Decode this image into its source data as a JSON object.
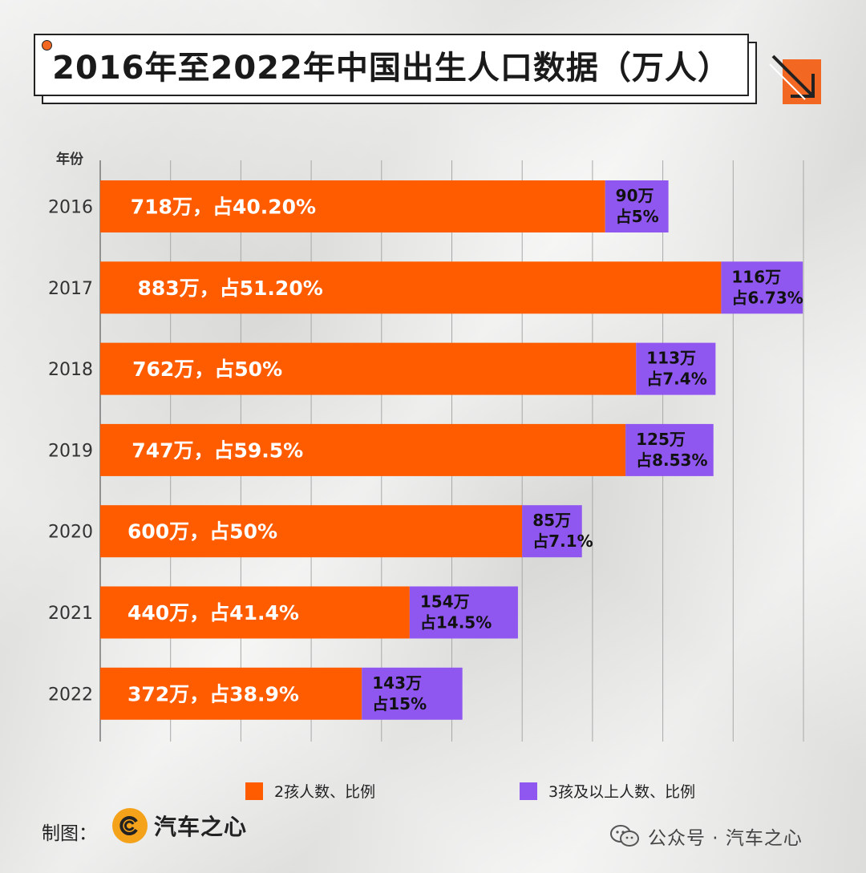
{
  "title": "2016年至2022年中国出生人口数据（万人）",
  "year_header": "年份",
  "maker_label": "制图：",
  "logo_text": "汽车之心",
  "wechat_text": "公众号 · 汽车之心",
  "colors": {
    "two_child": "#ff5c00",
    "three_plus": "#8f57f0",
    "accent": "#f26722"
  },
  "chart_data": {
    "type": "bar",
    "orientation": "horizontal",
    "stacked": true,
    "categories": [
      "2016",
      "2017",
      "2018",
      "2019",
      "2020",
      "2021",
      "2022"
    ],
    "series": [
      {
        "name": "2孩人数、比例",
        "values": [
          718,
          883,
          762,
          747,
          600,
          440,
          372
        ],
        "labels": [
          "718万，占40.20%",
          "883万，占51.20%",
          "762万，占50%",
          "747万，占59.5%",
          "600万，占50%",
          "440万，占41.4%",
          "372万，占38.9%"
        ]
      },
      {
        "name": "3孩及以上人数、比例",
        "values": [
          90,
          116,
          113,
          125,
          85,
          154,
          143
        ],
        "labels": [
          [
            "90万",
            "占5%"
          ],
          [
            "116万",
            "占6.73%"
          ],
          [
            "113万",
            "占7.4%"
          ],
          [
            "125万",
            "占8.53%"
          ],
          [
            "85万",
            "占7.1%"
          ],
          [
            "154万",
            "占14.5%"
          ],
          [
            "143万",
            "占15%"
          ]
        ]
      }
    ],
    "xlim": [
      0,
      1000
    ],
    "grid": true,
    "legend_position": "bottom"
  }
}
